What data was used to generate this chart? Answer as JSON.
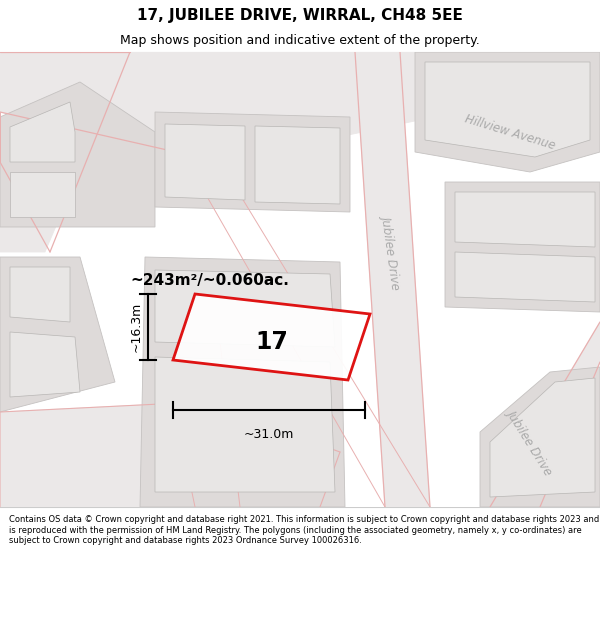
{
  "title": "17, JUBILEE DRIVE, WIRRAL, CH48 5EE",
  "subtitle": "Map shows position and indicative extent of the property.",
  "footer": "Contains OS data © Crown copyright and database right 2021. This information is subject to Crown copyright and database rights 2023 and is reproduced with the permission of HM Land Registry. The polygons (including the associated geometry, namely x, y co-ordinates) are subject to Crown copyright and database rights 2023 Ordnance Survey 100026316.",
  "area_label": "~243m²/~0.060ac.",
  "plot_number": "17",
  "dim_width": "~31.0m",
  "dim_height": "~16.3m",
  "map_bg": "#f7f5f5",
  "building_outer": "#dedad9",
  "building_inner": "#e8e6e5",
  "road_fill": "#ebe8e8",
  "road_line": "#e8b0b0",
  "highlight_color": "#dd0000",
  "street_color": "#aaaaaa",
  "street_label_jubilee1": "Jubilee Drive",
  "street_label_jubilee2": "Jubilee Drive",
  "street_label_hillview": "Hillview Avenue",
  "title_fontsize": 11,
  "subtitle_fontsize": 9,
  "footer_fontsize": 6.0
}
